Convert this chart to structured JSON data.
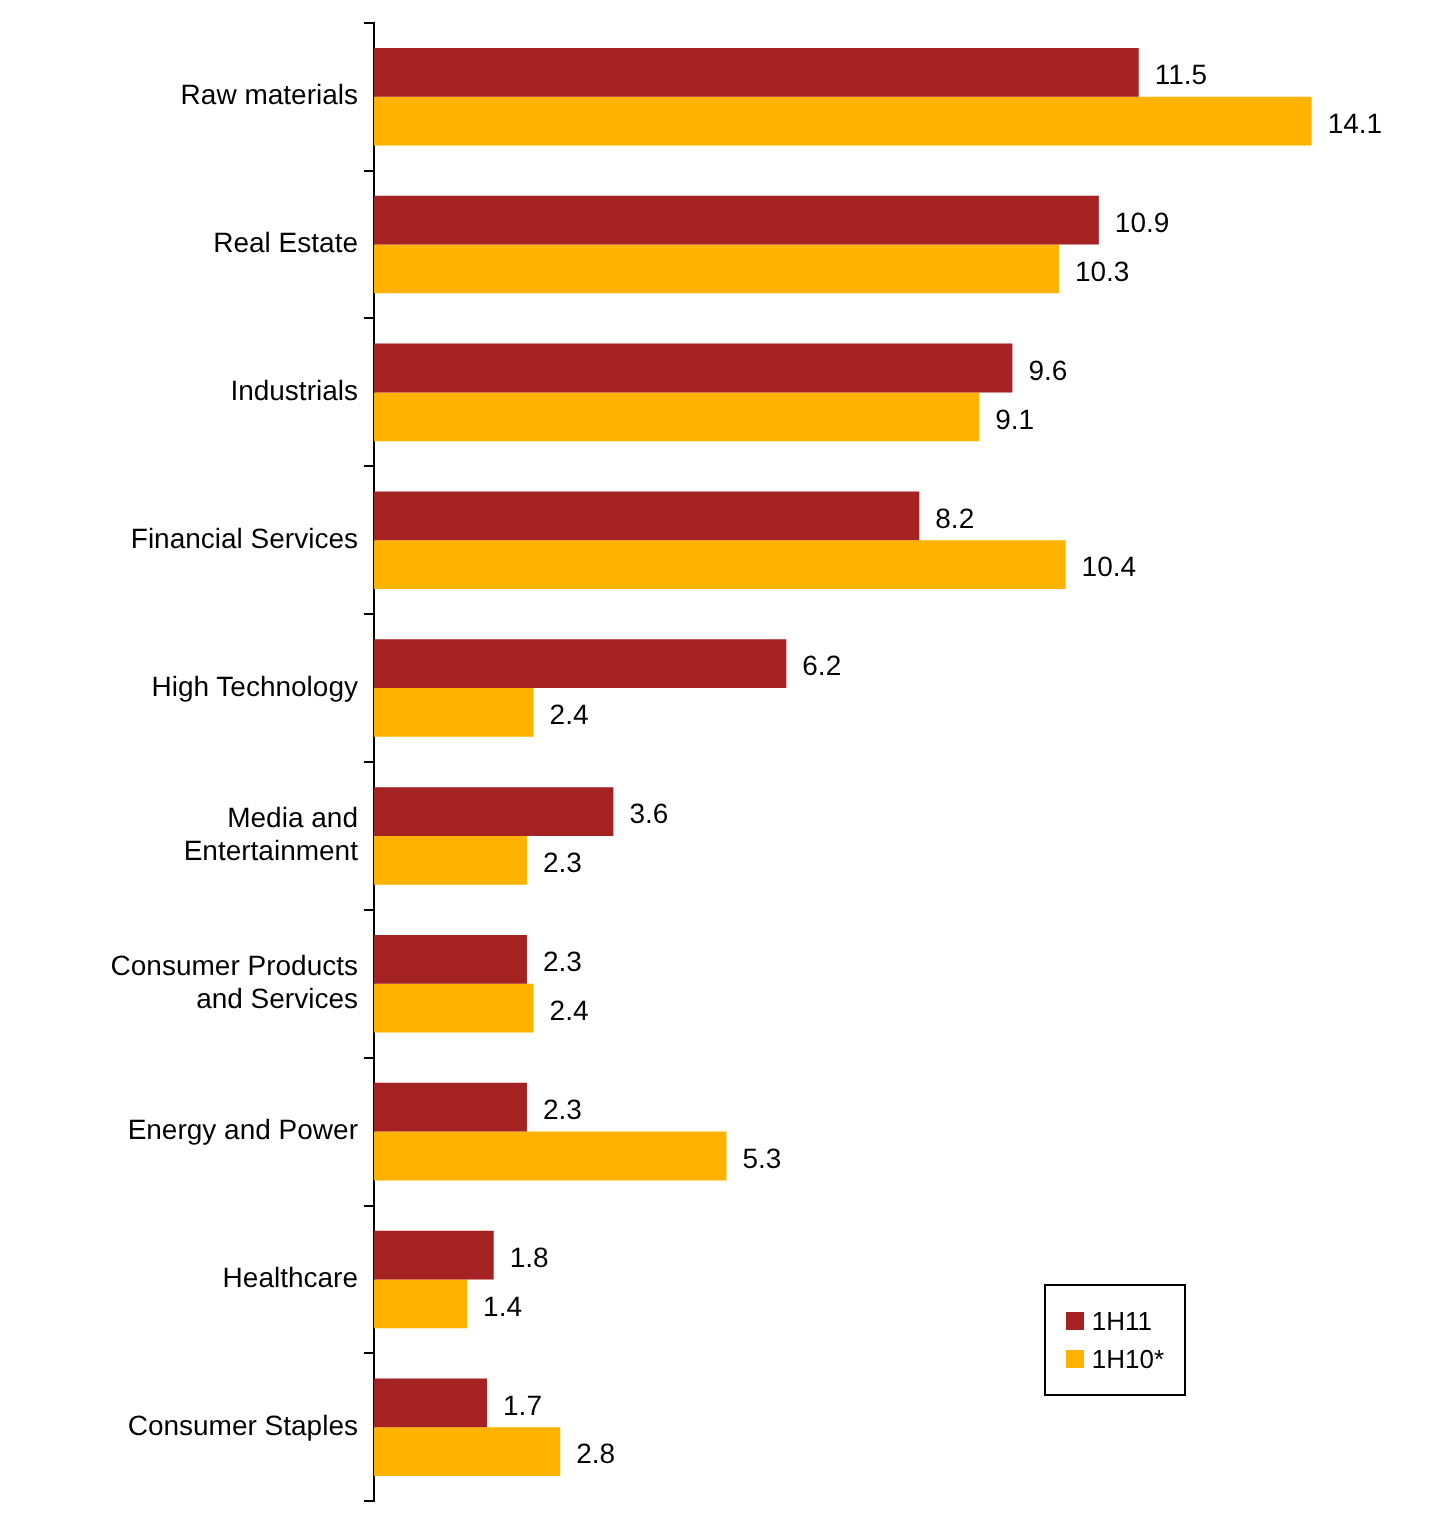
{
  "chart_data": {
    "type": "bar",
    "orientation": "horizontal",
    "categories": [
      "Raw materials",
      "Real Estate",
      "Industrials",
      "Financial Services",
      "High Technology",
      "Media and Entertainment",
      "Consumer Products and Services",
      "Energy and Power",
      "Healthcare",
      "Consumer Staples"
    ],
    "series": [
      {
        "name": "1H11",
        "color": "#a52223",
        "values": [
          11.5,
          10.9,
          9.6,
          8.2,
          6.2,
          3.6,
          2.3,
          2.3,
          1.8,
          1.7
        ]
      },
      {
        "name": "1H10*",
        "color": "#ffb300",
        "values": [
          14.1,
          10.3,
          9.1,
          10.4,
          2.4,
          2.3,
          2.4,
          5.3,
          1.4,
          2.8
        ]
      }
    ],
    "tick_labels": "y",
    "data_labels": true,
    "legend": "bottom right"
  }
}
